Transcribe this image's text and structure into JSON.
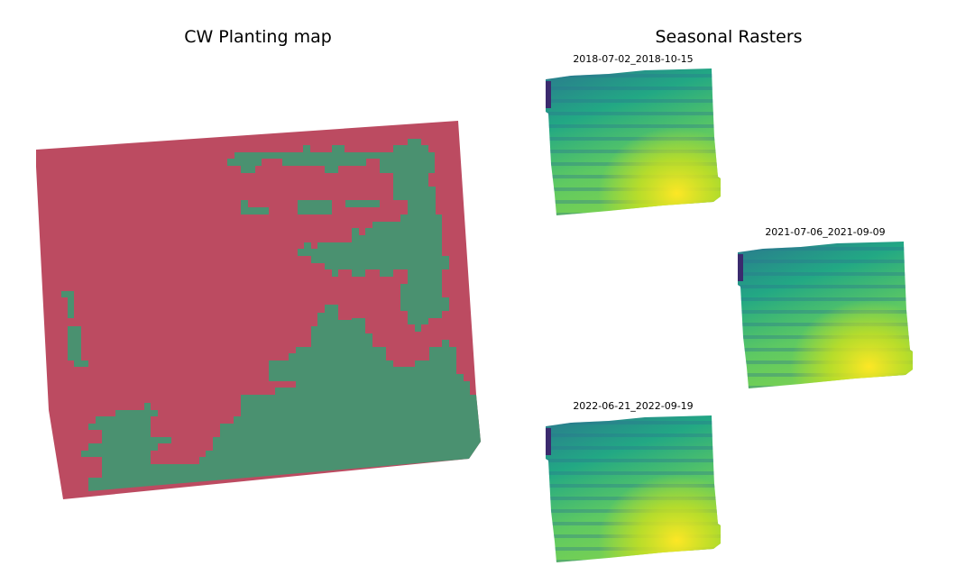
{
  "left_panel": {
    "title": "CW Planting map"
  },
  "right_panel": {
    "title": "Seasonal Rasters",
    "rasters": [
      {
        "label": "2018-07-02_2018-10-15"
      },
      {
        "label": "2021-07-06_2021-09-09"
      },
      {
        "label": "2022-06-21_2022-09-19"
      }
    ]
  }
}
